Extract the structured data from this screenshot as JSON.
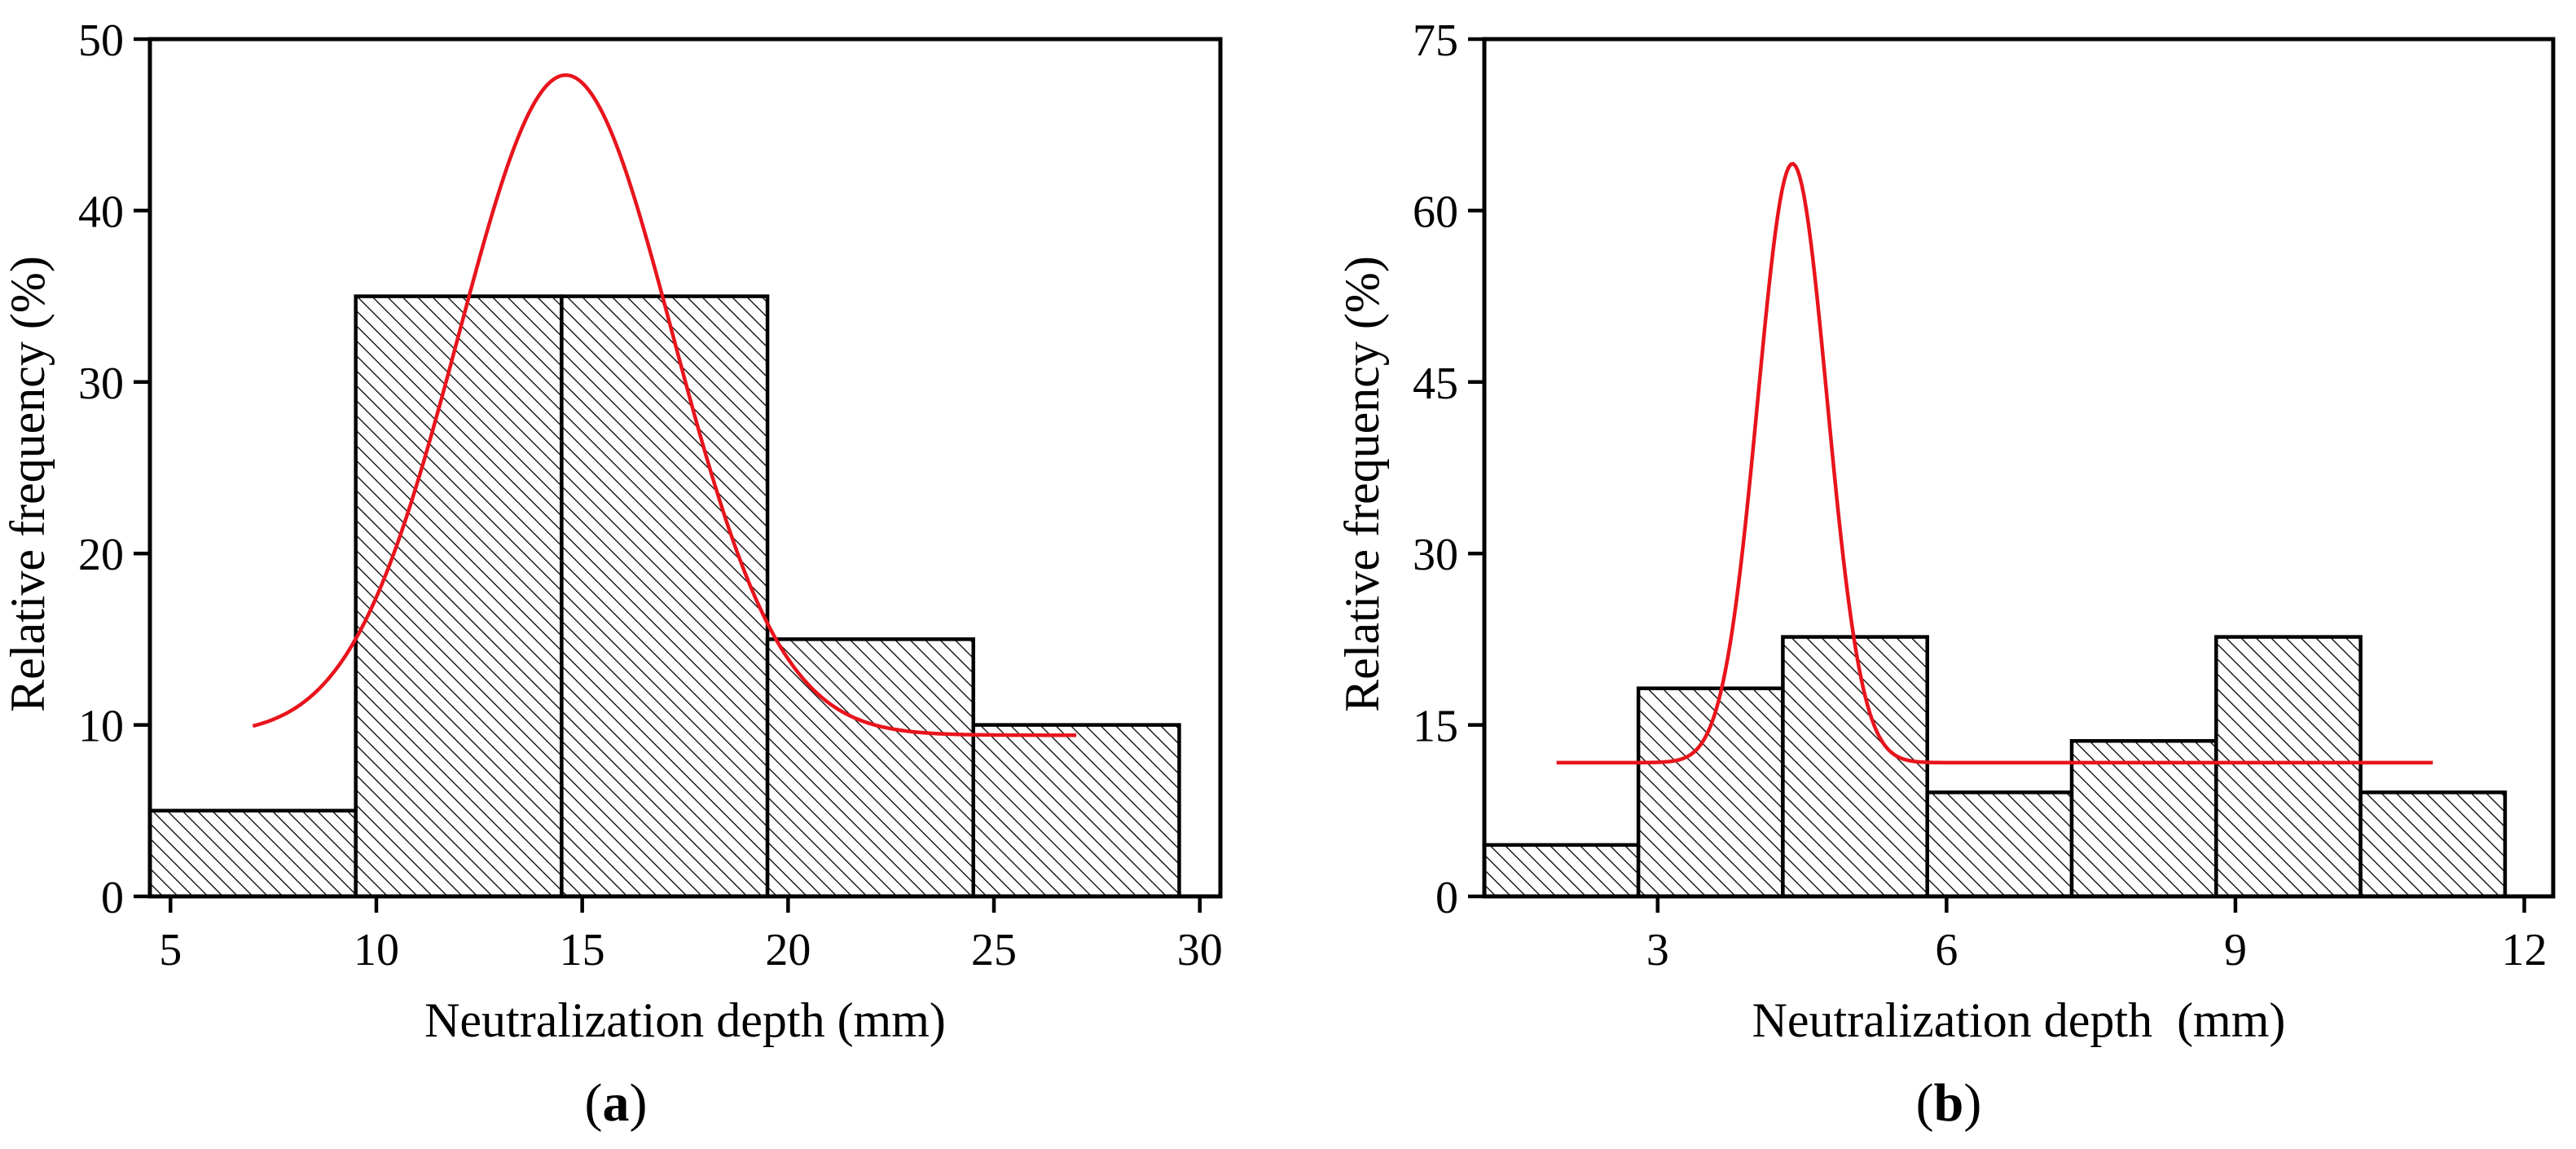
{
  "chart_data": [
    {
      "id": "a",
      "type": "bar",
      "subtype": "histogram_with_fit",
      "caption_paren_open": "(",
      "caption_letter": "a",
      "caption_paren_close": ")",
      "xlabel": "Neutralization depth (mm)",
      "ylabel": "Relative frequency (%)",
      "xlim": [
        4.5,
        30.5
      ],
      "ylim": [
        0,
        50
      ],
      "xticks": [
        5,
        10,
        15,
        20,
        25,
        30
      ],
      "yticks": [
        0,
        10,
        20,
        30,
        40,
        50
      ],
      "bins": [
        {
          "start": 4.5,
          "end": 9.5,
          "value": 5
        },
        {
          "start": 9.5,
          "end": 14.5,
          "value": 35
        },
        {
          "start": 14.5,
          "end": 19.5,
          "value": 35
        },
        {
          "start": 19.5,
          "end": 24.5,
          "value": 15
        },
        {
          "start": 24.5,
          "end": 29.5,
          "value": 10
        }
      ],
      "fit_curve": {
        "type": "gaussian",
        "x_range": [
          7.0,
          27.0
        ],
        "baseline": 9.4,
        "amplitude": 38.5,
        "center": 14.6,
        "sigma": 2.6
      },
      "bar_fill": "hatched",
      "curve_color": "#e8141c"
    },
    {
      "id": "b",
      "type": "bar",
      "subtype": "histogram_with_fit",
      "caption_paren_open": "(",
      "caption_letter": "b",
      "caption_paren_close": ")",
      "xlabel": "Neutralization depth  (mm)",
      "ylabel": "Relative frequency (%)",
      "xlim": [
        1.2,
        12.3
      ],
      "ylim": [
        0,
        75
      ],
      "xticks": [
        3,
        6,
        9,
        12
      ],
      "yticks": [
        0,
        15,
        30,
        45,
        60,
        75
      ],
      "bins": [
        {
          "start": 1.2,
          "end": 2.8,
          "value": 4.5
        },
        {
          "start": 2.8,
          "end": 4.3,
          "value": 18.2
        },
        {
          "start": 4.3,
          "end": 5.8,
          "value": 22.7
        },
        {
          "start": 5.8,
          "end": 7.3,
          "value": 9.1
        },
        {
          "start": 7.3,
          "end": 8.8,
          "value": 13.6
        },
        {
          "start": 8.8,
          "end": 10.3,
          "value": 22.7
        },
        {
          "start": 10.3,
          "end": 11.8,
          "value": 9.1
        }
      ],
      "fit_curve": {
        "type": "gaussian",
        "x_range": [
          1.95,
          11.05
        ],
        "baseline": 11.7,
        "amplitude": 52.4,
        "center": 4.4,
        "sigma": 0.36
      },
      "bar_fill": "hatched",
      "curve_color": "#e8141c"
    }
  ]
}
